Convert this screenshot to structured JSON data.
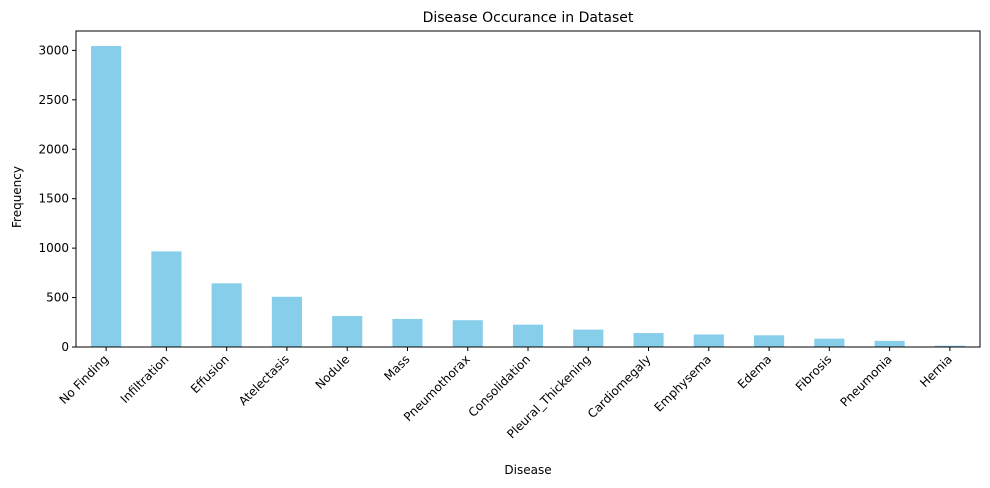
{
  "chart_data": {
    "type": "bar",
    "title": "Disease Occurance in Dataset",
    "xlabel": "Disease",
    "ylabel": "Frequency",
    "categories": [
      "No Finding",
      "Infiltration",
      "Effusion",
      "Atelectasis",
      "Nodule",
      "Mass",
      "Pneumothorax",
      "Consolidation",
      "Pleural_Thickening",
      "Cardiomegaly",
      "Emphysema",
      "Edema",
      "Fibrosis",
      "Pneumonia",
      "Hernia"
    ],
    "values": [
      3044,
      967,
      644,
      508,
      313,
      284,
      271,
      226,
      176,
      141,
      127,
      118,
      84,
      62,
      13
    ],
    "ylim": [
      0,
      3196
    ],
    "yticks": [
      0,
      500,
      1000,
      1500,
      2000,
      2500,
      3000
    ],
    "bar_color": "#87ceeb",
    "grid": false,
    "legend": "none"
  }
}
